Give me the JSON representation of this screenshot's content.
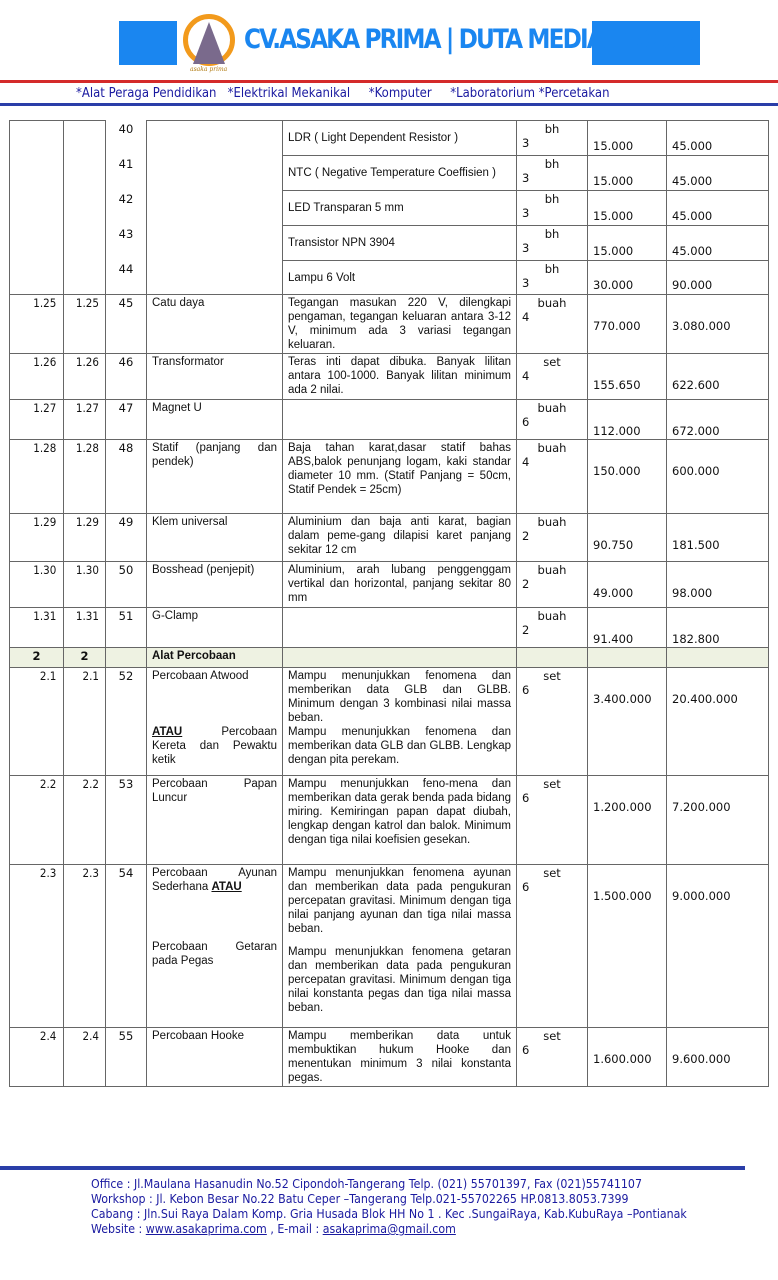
{
  "header": {
    "brand": "CV.ASAKA PRIMA | DUTA MEDIA GROUP",
    "logo_text": "asaka prima",
    "categories": "*Alat Peraga Pendidikan   *Elektrikal Mekanikal     *Komputer     *Laboratorium *Percetakan",
    "accent": "#1a86f0"
  },
  "top_rows": [
    {
      "no": "40",
      "spec": "LDR ( Light Dependent Resistor )",
      "unit": "bh",
      "qty": "3",
      "price": "15.000",
      "total": "45.000"
    },
    {
      "no": "41",
      "spec": "NTC ( Negative Temperature Coeffisien )",
      "unit": "bh",
      "qty": "3",
      "price": "15.000",
      "total": "45.000"
    },
    {
      "no": "42",
      "spec": "LED Transparan 5 mm",
      "unit": "bh",
      "qty": "3",
      "price": "15.000",
      "total": "45.000"
    },
    {
      "no": "43",
      "spec": "Transistor NPN 3904",
      "unit": "bh",
      "qty": "3",
      "price": "15.000",
      "total": "45.000"
    },
    {
      "no": "44",
      "spec": "Lampu 6 Volt",
      "unit": "bh",
      "qty": "3",
      "price": "30.000",
      "total": "90.000"
    }
  ],
  "rows": [
    {
      "a": "1.25",
      "b": "1.25",
      "no": "45",
      "name": "Catu daya",
      "spec": "Tegangan masukan 220 V, dilengkapi pengaman, tegangan keluaran antara 3-12 V, minimum ada 3 variasi tegangan keluaran.",
      "unit": "buah",
      "qty": "4",
      "price": "770.000",
      "total": "3.080.000"
    },
    {
      "a": "1.26",
      "b": "1.26",
      "no": "46",
      "name": "Transformator",
      "spec": "Teras inti dapat dibuka. Banyak lilitan antara 100-1000. Banyak lilitan minimum ada 2 nilai.",
      "unit": "set",
      "qty": "4",
      "price": "155.650",
      "total": "622.600"
    },
    {
      "a": "1.27",
      "b": "1.27",
      "no": "47",
      "name": "Magnet U",
      "spec": "",
      "unit": "buah",
      "qty": "6",
      "price": "112.000",
      "total": "672.000"
    },
    {
      "a": "1.28",
      "b": "1.28",
      "no": "48",
      "name": "Statif (panjang dan pendek)",
      "spec": "Baja tahan karat,dasar statif bahas ABS,balok penunjang logam, kaki standar diameter 10 mm. (Statif Panjang = 50cm, Statif Pendek = 25cm)",
      "unit": "buah",
      "qty": "4",
      "price": "150.000",
      "total": "600.000"
    },
    {
      "a": "1.29",
      "b": "1.29",
      "no": "49",
      "name": "Klem universal",
      "spec": "Aluminium dan baja anti karat, bagian dalam peme-gang dilapisi karet panjang sekitar 12 cm",
      "unit": "buah",
      "qty": "2",
      "price": "90.750",
      "total": "181.500"
    },
    {
      "a": "1.30",
      "b": "1.30",
      "no": "50",
      "name": "Bosshead (penjepit)",
      "spec": "Aluminium, arah lubang penggenggam vertikal dan horizontal, panjang sekitar 80 mm",
      "unit": "buah",
      "qty": "2",
      "price": "49.000",
      "total": "98.000"
    },
    {
      "a": "1.31",
      "b": "1.31",
      "no": "51",
      "name": "G-Clamp",
      "spec": "",
      "unit": "buah",
      "qty": "2",
      "price": "91.400",
      "total": "182.800"
    }
  ],
  "section": {
    "a": "2",
    "b": "2",
    "name": "Alat Percobaan"
  },
  "exp": [
    {
      "a": "2.1",
      "b": "2.1",
      "no": "52",
      "name1": "Percobaan Atwood",
      "or": "ATAU",
      "name2": " Percobaan Kereta dan Pewaktu ketik",
      "spec1": "Mampu menunjukkan fenomena dan memberikan data GLB dan GLBB. Minimum dengan 3 kombinasi nilai massa beban.",
      "spec2": "Mampu menunjukkan fenomena dan memberikan data GLB dan GLBB. Lengkap dengan pita perekam.",
      "unit": "set",
      "qty": "6",
      "price": "3.400.000",
      "total": "20.400.000"
    },
    {
      "a": "2.2",
      "b": "2.2",
      "no": "53",
      "name1": "Percobaan Papan Luncur",
      "spec1": "Mampu menunjukkan feno-mena dan memberikan data gerak benda pada bidang miring. Kemiringan papan dapat diubah, lengkap dengan katrol dan balok. Minimum dengan tiga nilai koefisien gesekan.",
      "unit": "set",
      "qty": "6",
      "price": "1.200.000",
      "total": "7.200.000"
    },
    {
      "a": "2.3",
      "b": "2.3",
      "no": "54",
      "name1": "Percobaan Ayunan Sederhana ",
      "or": "ATAU",
      "name2": "Percobaan Getaran pada Pegas",
      "spec1": "Mampu menunjukkan fenomena ayunan dan memberikan data pada pengukuran percepatan gravitasi. Minimum dengan tiga nilai panjang ayunan dan tiga nilai massa beban.",
      "spec2": "Mampu menunjukkan fenomena getaran dan memberikan data pada pengukuran percepatan gravitasi. Minimum dengan tiga nilai konstanta pegas dan tiga nilai massa beban.",
      "unit": "set",
      "qty": "6",
      "price": "1.500.000",
      "total": "9.000.000"
    },
    {
      "a": "2.4",
      "b": "2.4",
      "no": "55",
      "name1": "Percobaan Hooke",
      "spec1": "Mampu memberikan data untuk membuktikan hukum Hooke dan menentukan minimum 3 nilai konstanta pegas.",
      "unit": "set",
      "qty": "6",
      "price": "1.600.000",
      "total": "9.600.000"
    }
  ],
  "footer": {
    "office": "Office : Jl.Maulana Hasanudin No.52 Cipondoh-Tangerang Telp. (021) 55701397, Fax  (021)55741107",
    "workshop": "Workshop  : Jl. Kebon Besar No.22 Batu Ceper –Tangerang Telp.021-55702265  HP.0813.8053.7399",
    "cabang": "Cabang : Jln.Sui Raya Dalam Komp. Gria Husada Blok HH No 1 . Kec .SungaiRaya,  Kab.KubuRaya –Pontianak",
    "website_label": "Website : ",
    "website": "www.asakaprima.com",
    "email_label": " , E-mail : ",
    "email": "asakaprima@gmail.com"
  }
}
